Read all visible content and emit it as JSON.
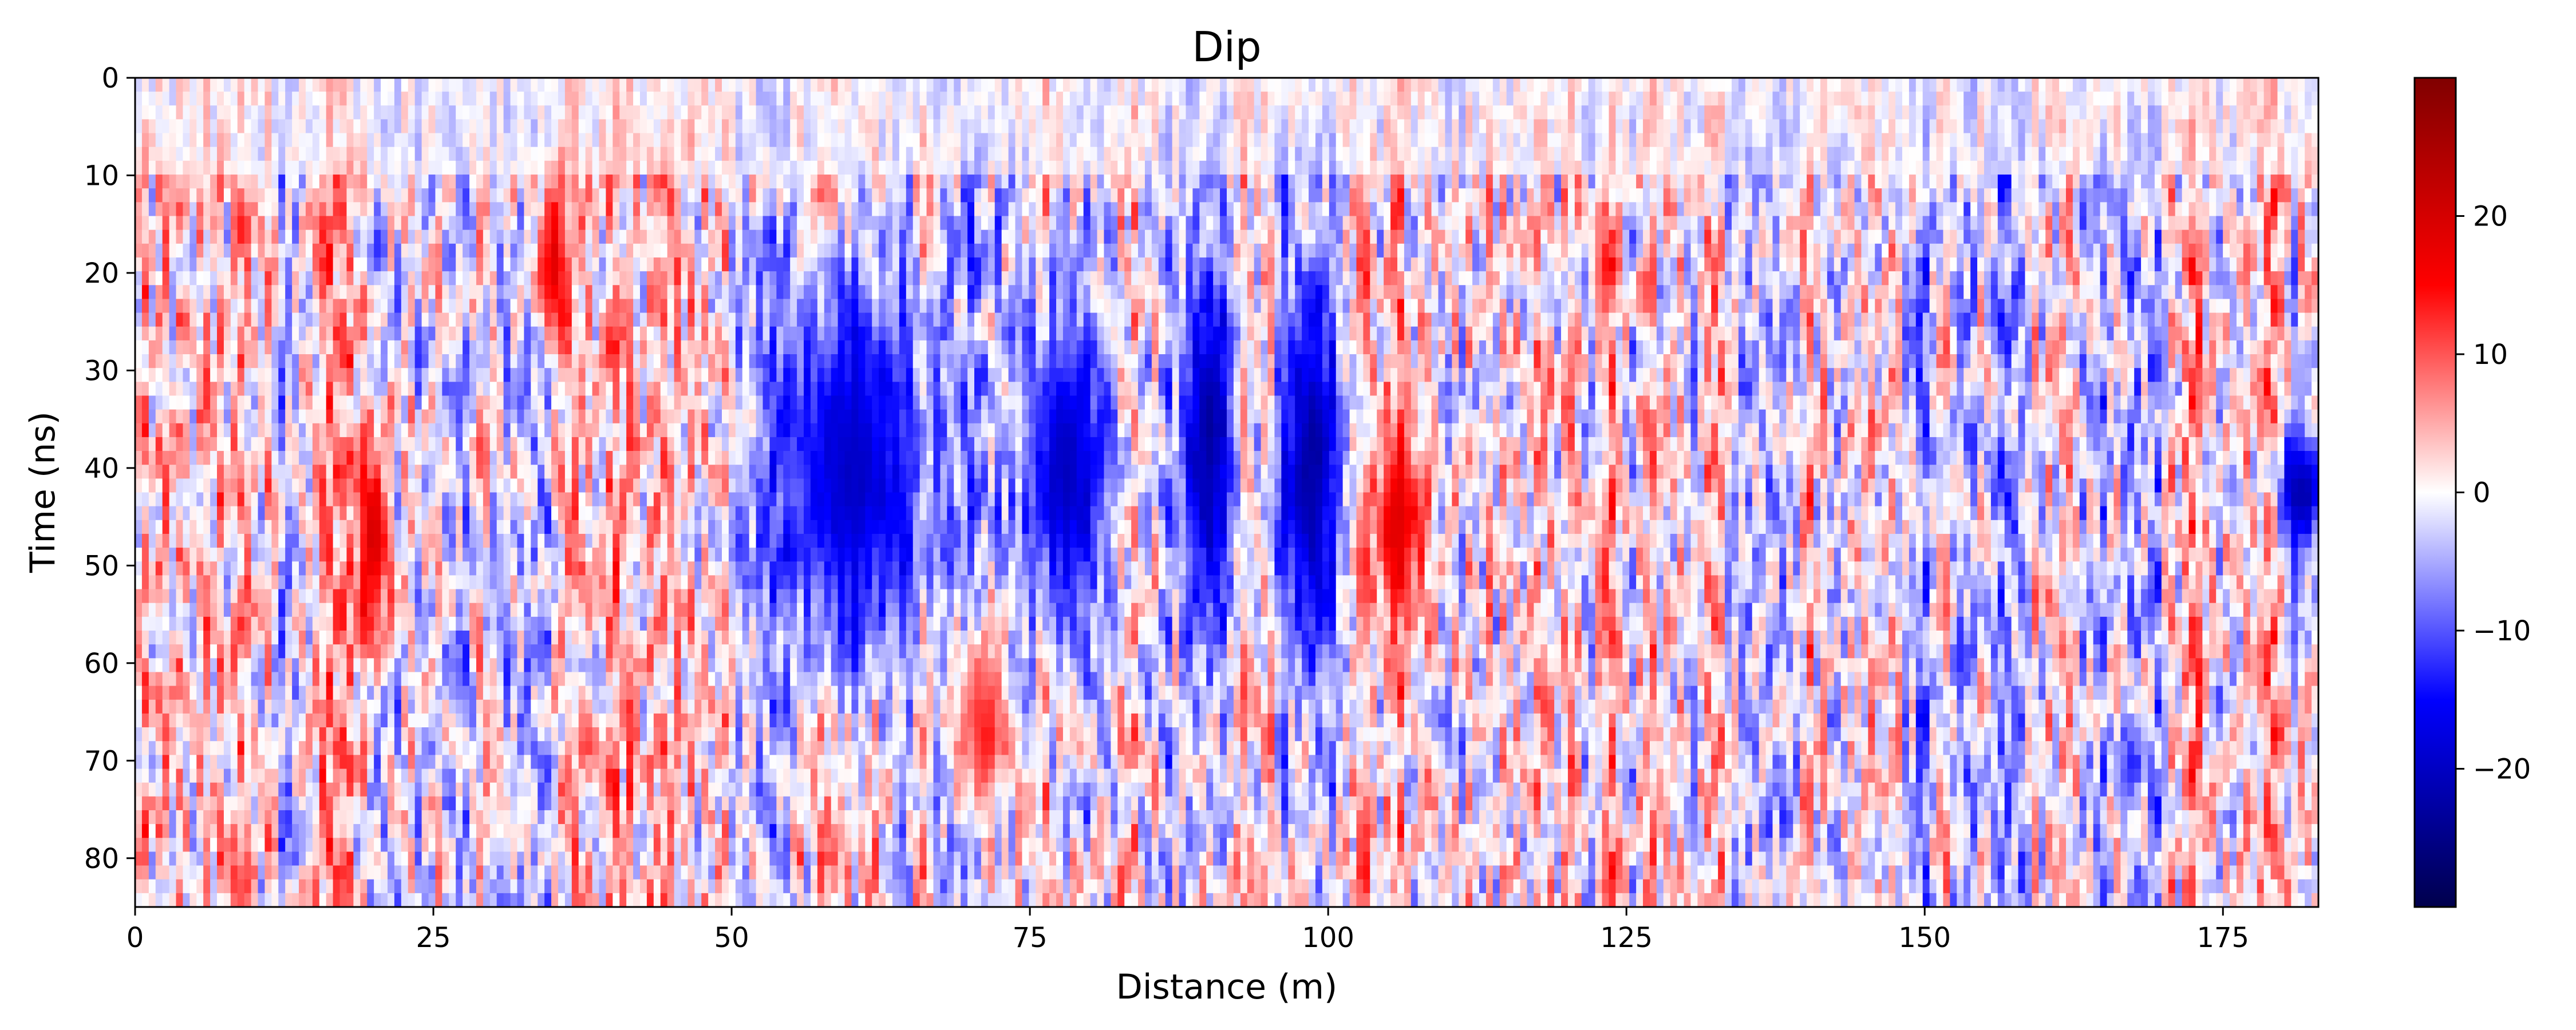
{
  "chart_data": {
    "type": "heatmap",
    "title": "Dip",
    "xlabel": "Distance (m)",
    "ylabel": "Time (ns)",
    "xlim": [
      0,
      183
    ],
    "ylim": [
      85,
      0
    ],
    "x_ticks": [
      "0",
      "25",
      "50",
      "75",
      "100",
      "125",
      "150",
      "175"
    ],
    "x_tick_values": [
      0,
      25,
      50,
      75,
      100,
      125,
      150,
      175
    ],
    "y_ticks": [
      "0",
      "10",
      "20",
      "30",
      "40",
      "50",
      "60",
      "70",
      "80"
    ],
    "y_tick_values": [
      0,
      10,
      20,
      30,
      40,
      50,
      60,
      70,
      80
    ],
    "colorbar": {
      "colormap": "seismic",
      "range": [
        -30,
        30
      ],
      "ticks": [
        "20",
        "10",
        "0",
        "−10",
        "−20"
      ],
      "tick_values": [
        20,
        10,
        0,
        -10,
        -20
      ],
      "colors": [
        "#00004c",
        "#0000ff",
        "#ffffff",
        "#ff0000",
        "#800000"
      ]
    },
    "dominant_features": [
      {
        "x_range": [
          52,
          68
        ],
        "y_range": [
          15,
          65
        ],
        "value": -22
      },
      {
        "x_range": [
          74,
          82
        ],
        "y_range": [
          20,
          60
        ],
        "value": -22
      },
      {
        "x_range": [
          88,
          92
        ],
        "y_range": [
          15,
          60
        ],
        "value": -25
      },
      {
        "x_range": [
          96,
          101
        ],
        "y_range": [
          15,
          65
        ],
        "value": -25
      },
      {
        "x_range": [
          104,
          108
        ],
        "y_range": [
          35,
          55
        ],
        "value": 20
      },
      {
        "x_range": [
          34,
          36
        ],
        "y_range": [
          10,
          28
        ],
        "value": 20
      },
      {
        "x_range": [
          19,
          21
        ],
        "y_range": [
          35,
          60
        ],
        "value": 22
      },
      {
        "x_range": [
          69,
          73
        ],
        "y_range": [
          55,
          78
        ],
        "value": 15
      },
      {
        "x_range": [
          180,
          183
        ],
        "y_range": [
          35,
          50
        ],
        "value": -25
      }
    ]
  }
}
